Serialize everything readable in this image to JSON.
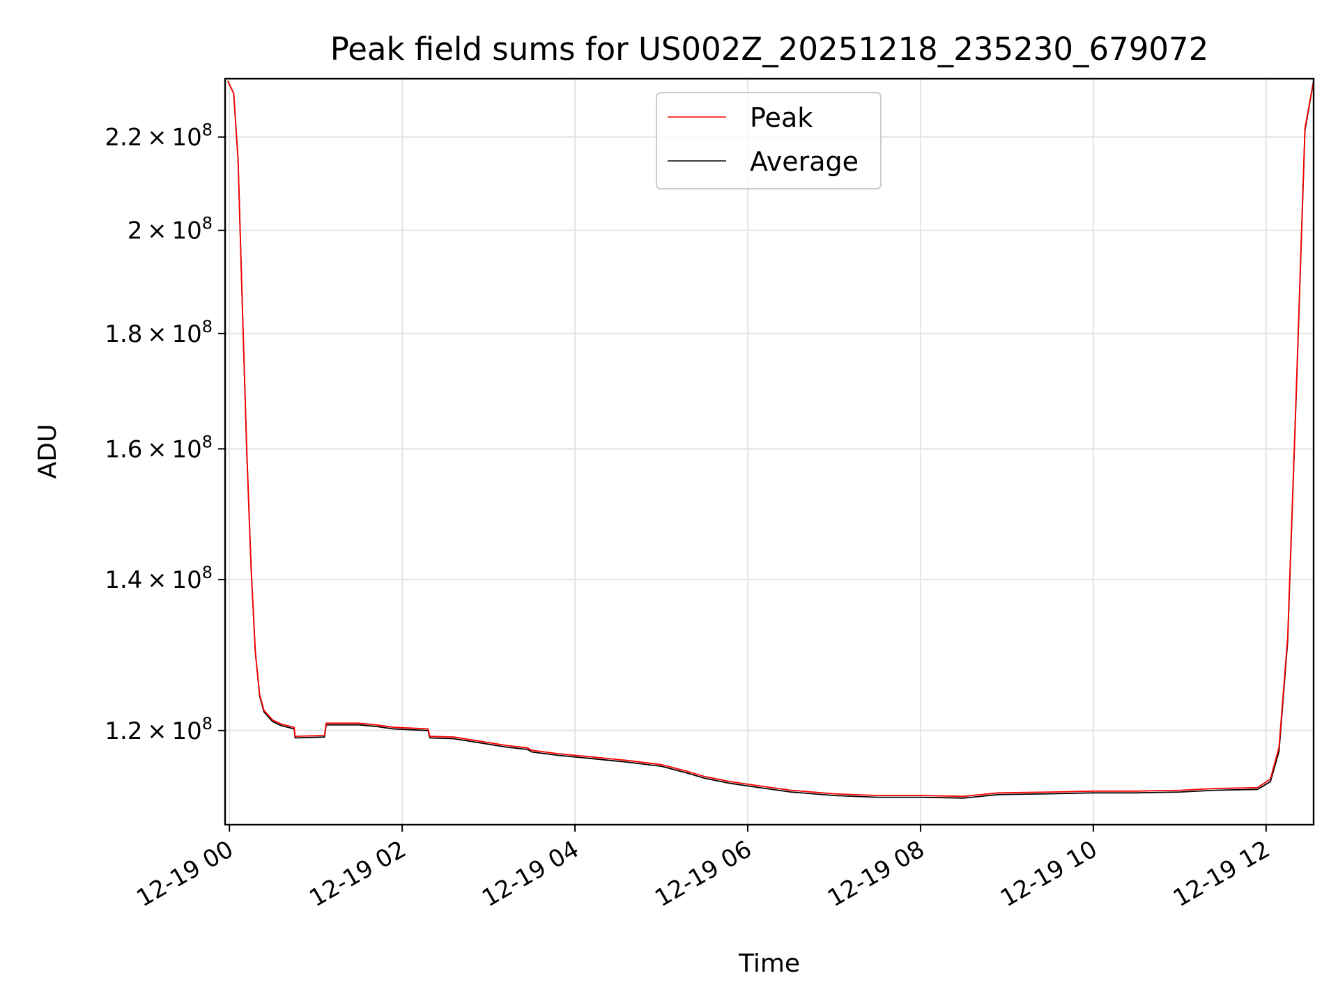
{
  "chart_data": {
    "type": "line",
    "title": "Peak field sums for US002Z_20251218_235230_679072",
    "xlabel": "Time",
    "ylabel": "ADU",
    "yscale": "log",
    "xlim_hours": [
      -0.05,
      12.55
    ],
    "ylim": [
      109000000,
      233500000
    ],
    "grid": true,
    "legend_position": "top-center",
    "x_ticks": [
      {
        "hours": 0,
        "label": "12-19 00"
      },
      {
        "hours": 2,
        "label": "12-19 02"
      },
      {
        "hours": 4,
        "label": "12-19 04"
      },
      {
        "hours": 6,
        "label": "12-19 06"
      },
      {
        "hours": 8,
        "label": "12-19 08"
      },
      {
        "hours": 10,
        "label": "12-19 10"
      },
      {
        "hours": 12,
        "label": "12-19 12"
      }
    ],
    "y_ticks": [
      {
        "value": 120000000,
        "mantissa": "1.2",
        "exp": "8"
      },
      {
        "value": 140000000,
        "mantissa": "1.4",
        "exp": "8"
      },
      {
        "value": 160000000,
        "mantissa": "1.6",
        "exp": "8"
      },
      {
        "value": 180000000,
        "mantissa": "1.8",
        "exp": "8"
      },
      {
        "value": 200000000,
        "mantissa": "2",
        "exp": "8"
      },
      {
        "value": 220000000,
        "mantissa": "2.2",
        "exp": "8"
      }
    ],
    "series": [
      {
        "name": "Peak",
        "color": "#ff0000",
        "x_hours": [
          -0.02,
          0.05,
          0.1,
          0.15,
          0.2,
          0.25,
          0.3,
          0.35,
          0.4,
          0.5,
          0.6,
          0.75,
          0.76,
          1.1,
          1.12,
          1.3,
          1.5,
          1.7,
          1.9,
          2.1,
          2.3,
          2.32,
          2.6,
          2.9,
          3.2,
          3.45,
          3.5,
          3.8,
          4.2,
          4.6,
          5.0,
          5.3,
          5.5,
          5.8,
          6.0,
          6.5,
          7.0,
          7.5,
          8.0,
          8.5,
          8.9,
          9.5,
          10.0,
          10.5,
          11.0,
          11.4,
          11.9,
          12.05,
          12.15,
          12.25,
          12.35,
          12.45,
          12.55
        ],
        "values": [
          233000000,
          230000000,
          215000000,
          185000000,
          160000000,
          142000000,
          130000000,
          124500000,
          122500000,
          121300000,
          120800000,
          120400000,
          119300000,
          119400000,
          120900000,
          120900000,
          120900000,
          120700000,
          120400000,
          120300000,
          120200000,
          119300000,
          119200000,
          118700000,
          118200000,
          117900000,
          117600000,
          117200000,
          116800000,
          116400000,
          115900000,
          115100000,
          114500000,
          113900000,
          113600000,
          112900000,
          112500000,
          112300000,
          112300000,
          112200000,
          112600000,
          112700000,
          112800000,
          112800000,
          112900000,
          113100000,
          113200000,
          114200000,
          118000000,
          132000000,
          170000000,
          222000000,
          233000000
        ]
      },
      {
        "name": "Average",
        "color": "#000000",
        "x_hours": [
          -0.02,
          0.05,
          0.1,
          0.15,
          0.2,
          0.25,
          0.3,
          0.35,
          0.4,
          0.5,
          0.6,
          0.75,
          0.76,
          1.1,
          1.12,
          1.3,
          1.5,
          1.7,
          1.9,
          2.1,
          2.3,
          2.32,
          2.6,
          2.9,
          3.2,
          3.45,
          3.5,
          3.8,
          4.2,
          4.6,
          5.0,
          5.3,
          5.5,
          5.8,
          6.0,
          6.5,
          7.0,
          7.5,
          8.0,
          8.5,
          8.9,
          9.5,
          10.0,
          10.5,
          11.0,
          11.4,
          11.9,
          12.05,
          12.15,
          12.25,
          12.35,
          12.45,
          12.55
        ],
        "values": [
          233000000,
          230000000,
          215000000,
          185000000,
          160000000,
          142000000,
          130000000,
          124300000,
          122300000,
          121100000,
          120600000,
          120200000,
          119100000,
          119200000,
          120700000,
          120700000,
          120700000,
          120500000,
          120200000,
          120100000,
          120000000,
          119100000,
          119000000,
          118500000,
          118000000,
          117700000,
          117400000,
          117000000,
          116600000,
          116200000,
          115700000,
          114900000,
          114300000,
          113700000,
          113400000,
          112700000,
          112300000,
          112100000,
          112100000,
          112000000,
          112400000,
          112500000,
          112600000,
          112600000,
          112700000,
          112900000,
          113000000,
          113900000,
          117500000,
          131500000,
          169500000,
          221500000,
          233000000
        ]
      }
    ]
  }
}
